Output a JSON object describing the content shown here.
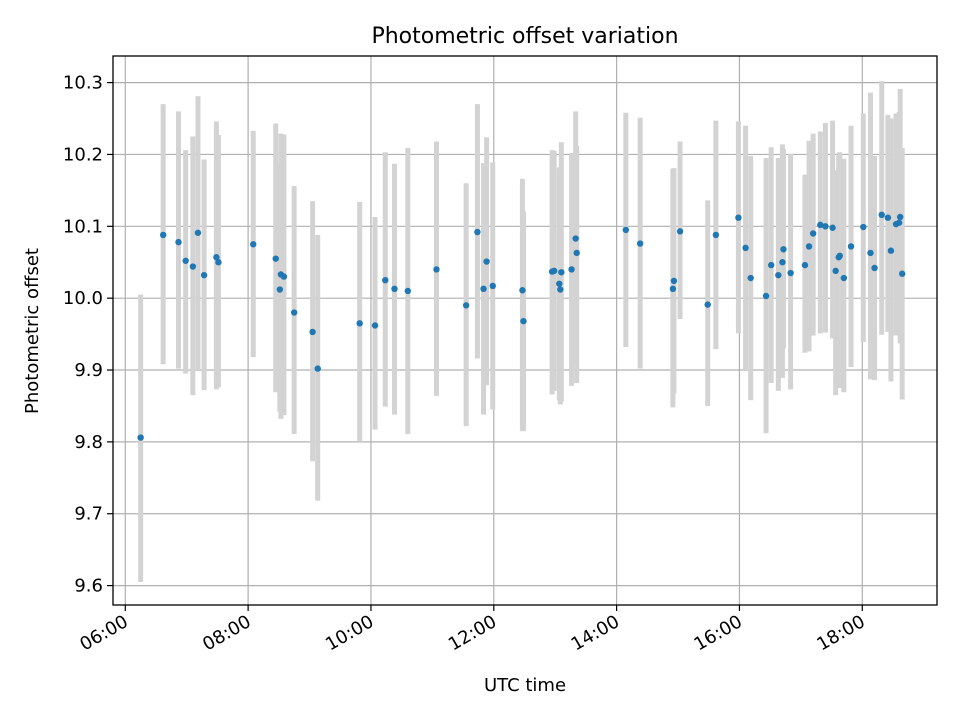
{
  "chart_data": {
    "type": "scatter",
    "title": "Photometric offset variation",
    "xlabel": "UTC time",
    "ylabel": "Photometric offset",
    "x_ticks": [
      "06:00",
      "08:00",
      "10:00",
      "12:00",
      "14:00",
      "16:00",
      "18:00"
    ],
    "y_ticks": [
      "9.6",
      "9.7",
      "9.8",
      "9.9",
      "10.0",
      "10.1",
      "10.2",
      "10.3"
    ],
    "xlim": [
      "05:48",
      "19:13"
    ],
    "ylim": [
      9.573,
      10.337
    ],
    "grid": true,
    "colors": {
      "point": "#1f77b4",
      "errorbar": "#d3d3d3",
      "grid": "#b0b0b0"
    },
    "series": [
      {
        "x": [
          "06:15",
          "06:37",
          "06:52",
          "06:59",
          "07:06",
          "07:11",
          "07:17",
          "07:29",
          "07:31",
          "08:05",
          "08:27",
          "08:31",
          "08:32",
          "08:35",
          "08:45",
          "09:03",
          "09:08",
          "09:49",
          "10:04",
          "10:14",
          "10:23",
          "10:36",
          "11:04",
          "11:33",
          "11:44",
          "11:50",
          "11:53",
          "11:59",
          "12:28",
          "12:29",
          "12:57",
          "12:59",
          "13:04",
          "13:05",
          "13:06",
          "13:16",
          "13:20",
          "13:21",
          "14:09",
          "14:23",
          "14:55",
          "14:56",
          "15:02",
          "15:29",
          "15:37",
          "15:59",
          "16:06",
          "16:11",
          "16:26",
          "16:31",
          "16:38",
          "16:42",
          "16:43",
          "16:50",
          "17:04",
          "17:08",
          "17:12",
          "17:19",
          "17:24",
          "17:31",
          "17:34",
          "17:37",
          "17:38",
          "17:42",
          "17:49",
          "18:01",
          "18:08",
          "18:12",
          "18:19",
          "18:25",
          "18:28",
          "18:33",
          "18:36",
          "18:37",
          "18:39"
        ],
        "y": [
          9.806,
          10.088,
          10.078,
          10.052,
          10.044,
          10.091,
          10.032,
          10.057,
          10.05,
          10.075,
          10.055,
          10.012,
          10.033,
          10.03,
          9.98,
          9.953,
          9.902,
          9.965,
          9.962,
          10.025,
          10.013,
          10.01,
          10.04,
          9.99,
          10.092,
          10.013,
          10.051,
          10.017,
          10.011,
          9.968,
          10.037,
          10.038,
          10.02,
          10.012,
          10.036,
          10.04,
          10.083,
          10.063,
          10.095,
          10.076,
          10.013,
          10.024,
          10.093,
          9.991,
          10.088,
          10.112,
          10.07,
          10.028,
          10.003,
          10.046,
          10.032,
          10.05,
          10.068,
          10.035,
          10.046,
          10.072,
          10.09,
          10.102,
          10.1,
          10.098,
          10.038,
          10.057,
          10.059,
          10.028,
          10.072,
          10.099,
          10.063,
          10.042,
          10.116,
          10.112,
          10.066,
          10.103,
          10.105,
          10.113,
          10.034
        ],
        "err_low": [
          9.605,
          9.908,
          9.902,
          9.895,
          9.865,
          9.9,
          9.872,
          9.873,
          9.876,
          9.918,
          9.869,
          9.842,
          9.832,
          9.837,
          9.811,
          9.773,
          9.718,
          9.8,
          9.817,
          9.849,
          9.838,
          9.811,
          9.864,
          9.822,
          9.916,
          9.838,
          9.879,
          9.845,
          9.815,
          9.815,
          9.866,
          9.871,
          9.858,
          9.852,
          9.856,
          9.878,
          9.907,
          9.882,
          9.932,
          9.902,
          9.848,
          9.867,
          9.971,
          9.85,
          9.929,
          9.951,
          9.9,
          9.858,
          9.812,
          9.882,
          9.871,
          9.889,
          9.93,
          9.873,
          9.924,
          9.926,
          9.948,
          9.951,
          9.952,
          9.944,
          9.865,
          9.877,
          9.875,
          9.869,
          9.904,
          9.939,
          9.887,
          9.886,
          9.949,
          9.953,
          9.884,
          9.948,
          9.95,
          9.937,
          9.859
        ],
        "err_high": [
          10.005,
          10.27,
          10.26,
          10.206,
          10.225,
          10.281,
          10.193,
          10.246,
          10.227,
          10.233,
          10.243,
          10.186,
          10.229,
          10.228,
          10.156,
          10.135,
          10.088,
          10.134,
          10.113,
          10.203,
          10.187,
          10.209,
          10.218,
          10.16,
          10.27,
          10.188,
          10.224,
          10.189,
          10.166,
          10.121,
          10.206,
          10.205,
          10.182,
          10.174,
          10.217,
          10.202,
          10.26,
          10.212,
          10.258,
          10.251,
          10.18,
          10.181,
          10.218,
          10.136,
          10.247,
          10.246,
          10.24,
          10.198,
          10.195,
          10.21,
          10.195,
          10.214,
          10.208,
          10.201,
          10.172,
          10.219,
          10.229,
          10.232,
          10.244,
          10.247,
          10.178,
          10.202,
          10.203,
          10.194,
          10.24,
          10.257,
          10.286,
          10.198,
          10.302,
          10.255,
          10.25,
          10.257,
          10.259,
          10.291,
          10.209
        ]
      }
    ]
  }
}
